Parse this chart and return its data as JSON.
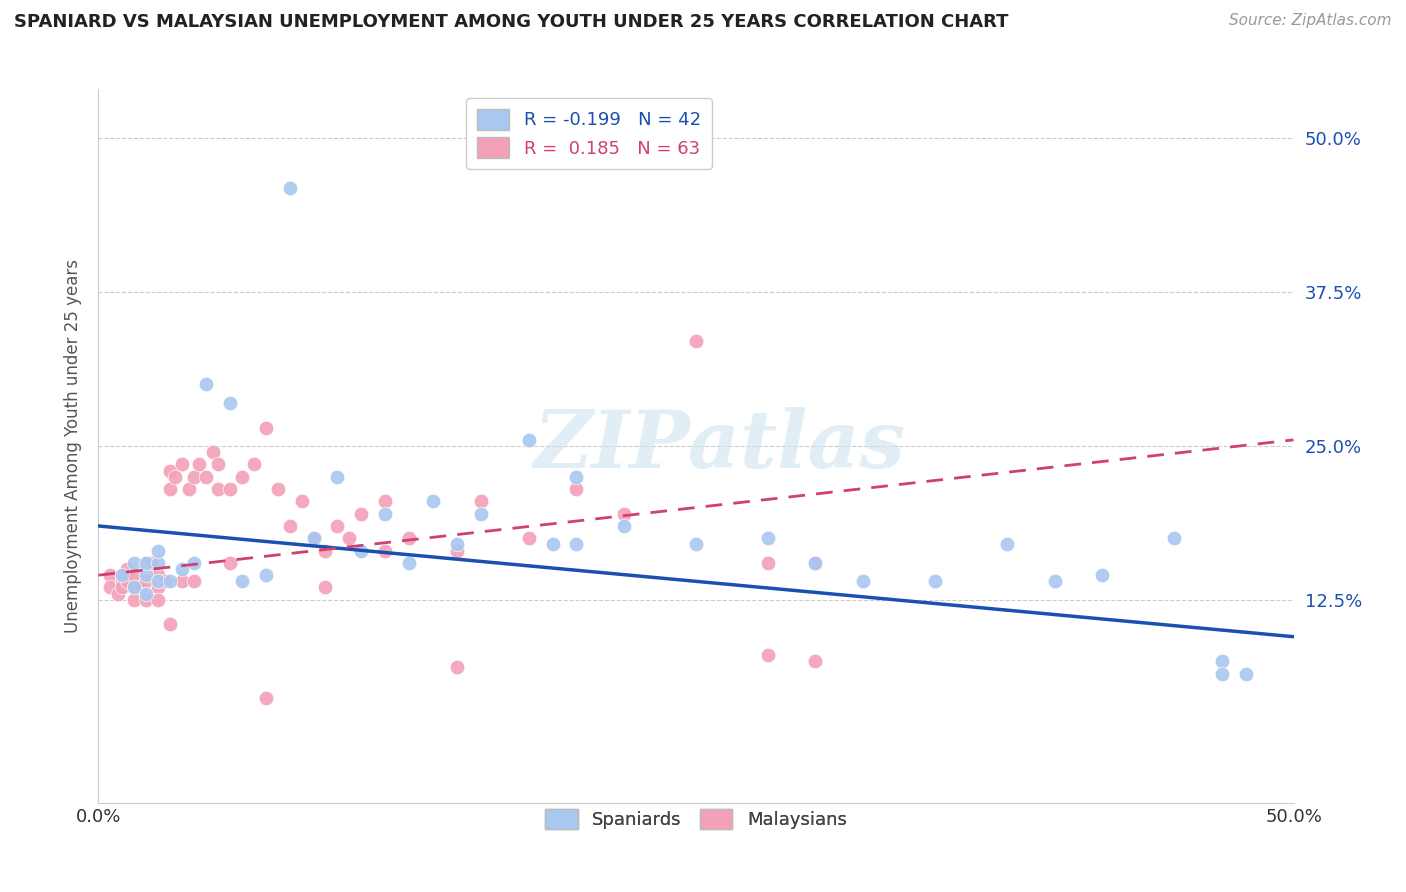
{
  "title": "SPANIARD VS MALAYSIAN UNEMPLOYMENT AMONG YOUTH UNDER 25 YEARS CORRELATION CHART",
  "source": "Source: ZipAtlas.com",
  "ylabel": "Unemployment Among Youth under 25 years",
  "xlim": [
    0,
    0.5
  ],
  "ylim": [
    -0.04,
    0.54
  ],
  "ytick_vals": [
    0.125,
    0.25,
    0.375,
    0.5
  ],
  "ytick_labels": [
    "12.5%",
    "25.0%",
    "37.5%",
    "50.0%"
  ],
  "xtick_vals": [
    0.0,
    0.1,
    0.2,
    0.3,
    0.4,
    0.5
  ],
  "xtick_labels": [
    "0.0%",
    "",
    "",
    "",
    "",
    "50.0%"
  ],
  "spaniards_R": -0.199,
  "spaniards_N": 42,
  "malaysians_R": 0.185,
  "malaysians_N": 63,
  "spaniards_color": "#A8C8F0",
  "malaysians_color": "#F4A0B8",
  "spaniards_line_color": "#1A50B0",
  "malaysians_line_color": "#D04070",
  "watermark_text": "ZIPatlas",
  "background_color": "#FFFFFF",
  "sp_trend_x": [
    0.0,
    0.5
  ],
  "sp_trend_y": [
    0.185,
    0.095
  ],
  "ml_trend_x": [
    0.0,
    0.5
  ],
  "ml_trend_y": [
    0.145,
    0.255
  ],
  "spaniards_x": [
    0.01,
    0.015,
    0.015,
    0.02,
    0.02,
    0.02,
    0.025,
    0.025,
    0.025,
    0.03,
    0.035,
    0.04,
    0.045,
    0.055,
    0.06,
    0.07,
    0.08,
    0.09,
    0.1,
    0.11,
    0.12,
    0.13,
    0.14,
    0.15,
    0.16,
    0.18,
    0.19,
    0.2,
    0.2,
    0.22,
    0.25,
    0.28,
    0.3,
    0.32,
    0.35,
    0.38,
    0.4,
    0.42,
    0.45,
    0.47,
    0.47,
    0.48
  ],
  "spaniards_y": [
    0.145,
    0.135,
    0.155,
    0.13,
    0.145,
    0.155,
    0.14,
    0.155,
    0.165,
    0.14,
    0.15,
    0.155,
    0.3,
    0.285,
    0.14,
    0.145,
    0.46,
    0.175,
    0.225,
    0.165,
    0.195,
    0.155,
    0.205,
    0.17,
    0.195,
    0.255,
    0.17,
    0.17,
    0.225,
    0.185,
    0.17,
    0.175,
    0.155,
    0.14,
    0.14,
    0.17,
    0.14,
    0.145,
    0.175,
    0.075,
    0.065,
    0.065
  ],
  "malaysians_x": [
    0.005,
    0.005,
    0.008,
    0.01,
    0.01,
    0.01,
    0.012,
    0.012,
    0.015,
    0.015,
    0.015,
    0.018,
    0.02,
    0.02,
    0.02,
    0.022,
    0.025,
    0.025,
    0.025,
    0.028,
    0.03,
    0.03,
    0.032,
    0.035,
    0.035,
    0.038,
    0.04,
    0.04,
    0.042,
    0.045,
    0.048,
    0.05,
    0.05,
    0.055,
    0.06,
    0.065,
    0.07,
    0.075,
    0.08,
    0.085,
    0.09,
    0.095,
    0.1,
    0.105,
    0.11,
    0.12,
    0.12,
    0.13,
    0.15,
    0.16,
    0.18,
    0.2,
    0.22,
    0.25,
    0.28,
    0.3,
    0.03,
    0.055,
    0.07,
    0.095,
    0.15,
    0.28,
    0.3
  ],
  "malaysians_y": [
    0.145,
    0.135,
    0.13,
    0.14,
    0.145,
    0.135,
    0.14,
    0.15,
    0.145,
    0.135,
    0.125,
    0.135,
    0.155,
    0.14,
    0.125,
    0.155,
    0.145,
    0.135,
    0.125,
    0.14,
    0.23,
    0.215,
    0.225,
    0.235,
    0.14,
    0.215,
    0.225,
    0.14,
    0.235,
    0.225,
    0.245,
    0.235,
    0.215,
    0.215,
    0.225,
    0.235,
    0.265,
    0.215,
    0.185,
    0.205,
    0.175,
    0.165,
    0.185,
    0.175,
    0.195,
    0.205,
    0.165,
    0.175,
    0.165,
    0.205,
    0.175,
    0.215,
    0.195,
    0.335,
    0.155,
    0.155,
    0.105,
    0.155,
    0.045,
    0.135,
    0.07,
    0.08,
    0.075
  ]
}
